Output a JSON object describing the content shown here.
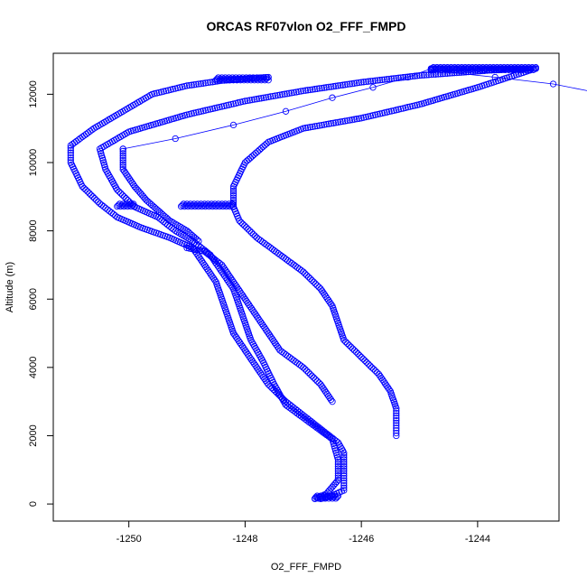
{
  "chart_data": {
    "type": "scatter",
    "title": "ORCAS RF07vlon O2_FFF_FMPD",
    "xlabel": "O2_FFF_FMPD",
    "ylabel": "Altitude (m)",
    "xlim": [
      -1251.3,
      -1242.6
    ],
    "ylim": [
      -500,
      13200
    ],
    "xticks": [
      -1250,
      -1248,
      -1246,
      -1244
    ],
    "xtick_labels": [
      "-1250",
      "-1248",
      "-1246",
      "-1244"
    ],
    "yticks": [
      0,
      2000,
      4000,
      6000,
      8000,
      10000,
      12000
    ],
    "ytick_labels": [
      "0",
      "2000",
      "4000",
      "6000",
      "8000",
      "10000",
      "12000"
    ],
    "grid": false,
    "marker": "open-circle",
    "series_color": "#0000ff",
    "series": [
      {
        "path": [
          [
            -1246.7,
            150
          ],
          [
            -1246.5,
            250
          ],
          [
            -1246.3,
            400
          ],
          [
            -1246.3,
            900
          ],
          [
            -1246.3,
            1500
          ],
          [
            -1246.4,
            1800
          ],
          [
            -1246.7,
            2200
          ],
          [
            -1247.0,
            2600
          ],
          [
            -1247.3,
            3000
          ],
          [
            -1247.6,
            3500
          ],
          [
            -1247.8,
            4000
          ],
          [
            -1248.0,
            4500
          ],
          [
            -1248.2,
            5000
          ],
          [
            -1248.3,
            5500
          ],
          [
            -1248.4,
            6000
          ],
          [
            -1248.5,
            6500
          ],
          [
            -1248.7,
            7000
          ],
          [
            -1248.9,
            7500
          ],
          [
            -1249.3,
            7800
          ],
          [
            -1249.8,
            8100
          ],
          [
            -1250.2,
            8400
          ],
          [
            -1250.5,
            8800
          ],
          [
            -1250.8,
            9300
          ],
          [
            -1251.0,
            10000
          ],
          [
            -1251.0,
            10500
          ],
          [
            -1250.6,
            11000
          ],
          [
            -1250.1,
            11500
          ],
          [
            -1249.6,
            12000
          ],
          [
            -1249.0,
            12250
          ],
          [
            -1248.4,
            12400
          ],
          [
            -1247.6,
            12500
          ]
        ]
      },
      {
        "path": [
          [
            -1246.8,
            150
          ],
          [
            -1246.6,
            300
          ],
          [
            -1246.4,
            700
          ],
          [
            -1246.4,
            1300
          ],
          [
            -1246.5,
            1900
          ],
          [
            -1246.9,
            2400
          ],
          [
            -1247.3,
            2900
          ],
          [
            -1247.5,
            3500
          ],
          [
            -1247.7,
            4200
          ],
          [
            -1247.9,
            4800
          ],
          [
            -1248.0,
            5300
          ],
          [
            -1248.1,
            5800
          ],
          [
            -1248.2,
            6300
          ],
          [
            -1248.4,
            6800
          ],
          [
            -1248.6,
            7300
          ],
          [
            -1248.9,
            7700
          ],
          [
            -1249.2,
            8000
          ],
          [
            -1249.5,
            8400
          ],
          [
            -1249.9,
            8700
          ],
          [
            -1250.2,
            9200
          ],
          [
            -1250.4,
            9800
          ],
          [
            -1250.5,
            10400
          ],
          [
            -1250.0,
            10900
          ],
          [
            -1249.0,
            11400
          ],
          [
            -1248.0,
            11800
          ],
          [
            -1247.0,
            12100
          ],
          [
            -1246.0,
            12350
          ],
          [
            -1245.0,
            12550
          ],
          [
            -1243.8,
            12700
          ],
          [
            -1243.1,
            12750
          ]
        ]
      },
      {
        "path": [
          [
            -1249.0,
            7500
          ],
          [
            -1248.7,
            7400
          ],
          [
            -1248.4,
            7000
          ],
          [
            -1248.2,
            6500
          ],
          [
            -1248.0,
            6000
          ],
          [
            -1247.8,
            5500
          ],
          [
            -1247.6,
            5000
          ],
          [
            -1247.4,
            4500
          ],
          [
            -1247.0,
            4000
          ],
          [
            -1246.7,
            3500
          ],
          [
            -1246.5,
            3000
          ]
        ]
      },
      {
        "path": [
          [
            -1248.2,
            8700
          ],
          [
            -1248.1,
            8300
          ],
          [
            -1247.8,
            7800
          ],
          [
            -1247.4,
            7300
          ],
          [
            -1247.0,
            6800
          ],
          [
            -1246.7,
            6300
          ],
          [
            -1246.5,
            5800
          ],
          [
            -1246.4,
            5300
          ],
          [
            -1246.3,
            4800
          ],
          [
            -1246.0,
            4300
          ],
          [
            -1245.7,
            3800
          ],
          [
            -1245.5,
            3300
          ],
          [
            -1245.4,
            2800
          ],
          [
            -1245.4,
            2300
          ],
          [
            -1245.4,
            2000
          ]
        ]
      },
      {
        "path": [
          [
            -1248.2,
            8700
          ],
          [
            -1248.2,
            9300
          ],
          [
            -1248.0,
            10000
          ],
          [
            -1247.6,
            10600
          ],
          [
            -1247.0,
            11000
          ],
          [
            -1246.0,
            11300
          ],
          [
            -1245.0,
            11700
          ],
          [
            -1244.0,
            12200
          ],
          [
            -1243.1,
            12700
          ]
        ]
      },
      {
        "path": [
          [
            -1250.1,
            10400
          ],
          [
            -1250.1,
            9800
          ],
          [
            -1249.9,
            9300
          ],
          [
            -1249.7,
            8900
          ],
          [
            -1249.5,
            8600
          ],
          [
            -1249.3,
            8300
          ],
          [
            -1249.0,
            8000
          ],
          [
            -1248.8,
            7700
          ]
        ]
      },
      {
        "path": [
          [
            -1244.8,
            12750
          ],
          [
            -1244.0,
            12750
          ],
          [
            -1243.0,
            12750
          ]
        ]
      }
    ],
    "sparse_segments": [
      [
        [
          -1244.8,
          12700
        ],
        [
          -1243.7,
          12500
        ],
        [
          -1242.7,
          12300
        ],
        [
          -1241.8,
          12000
        ],
        [
          -1241.0,
          11700
        ],
        [
          -1240.0,
          11300
        ],
        [
          -1239.0,
          10900
        ],
        [
          -1238.2,
          10600
        ],
        [
          -1237.6,
          10300
        ],
        [
          -1237.3,
          10000
        ]
      ],
      [
        [
          -1250.1,
          10400
        ],
        [
          -1249.2,
          10700
        ],
        [
          -1248.2,
          11100
        ],
        [
          -1247.3,
          11500
        ],
        [
          -1246.5,
          11900
        ],
        [
          -1245.8,
          12200
        ],
        [
          -1245.2,
          12500
        ],
        [
          -1244.8,
          12750
        ]
      ]
    ],
    "clusters": [
      {
        "x_range": [
          -1248.5,
          -1247.6
        ],
        "y": 12450
      },
      {
        "x_range": [
          -1249.1,
          -1248.2
        ],
        "y": 8750
      },
      {
        "x_range": [
          -1250.2,
          -1249.9
        ],
        "y": 8750
      },
      {
        "x_range": [
          -1246.8,
          -1246.4
        ],
        "y": 200
      },
      {
        "x_range": [
          -1244.8,
          -1243.0
        ],
        "y": 12750
      }
    ]
  }
}
